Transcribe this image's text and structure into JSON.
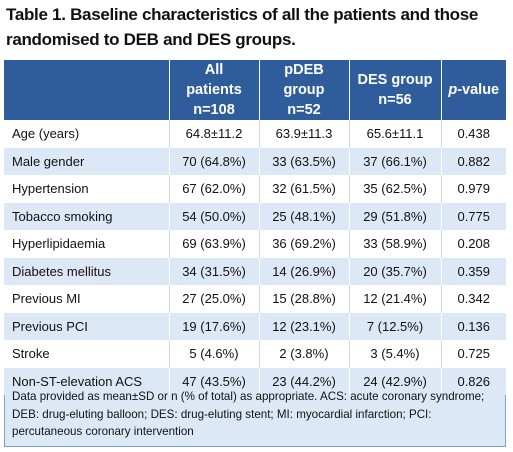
{
  "title": "Table 1. Baseline characteristics of all the patients and those randomised to DEB and DES groups.",
  "headers": {
    "characteristic": "",
    "all_patients": "All patients",
    "all_patients_n": "n=108",
    "pdeb": "pDEB group",
    "pdeb_n": "n=52",
    "des": "DES group",
    "des_n": "n=56",
    "p_prefix": "p",
    "p_suffix": "-value"
  },
  "rows": [
    {
      "label": "Age (years)",
      "all": "64.8±11.2",
      "pdeb": "63.9±11.3",
      "des": "65.6±11.1",
      "p": "0.438"
    },
    {
      "label": "Male gender",
      "all": "70 (64.8%)",
      "pdeb": "33 (63.5%)",
      "des": "37 (66.1%)",
      "p": "0.882"
    },
    {
      "label": "Hypertension",
      "all": "67 (62.0%)",
      "pdeb": "32 (61.5%)",
      "des": "35 (62.5%)",
      "p": "0.979"
    },
    {
      "label": "Tobacco smoking",
      "all": "54 (50.0%)",
      "pdeb": "25 (48.1%)",
      "des": "29 (51.8%)",
      "p": "0.775"
    },
    {
      "label": "Hyperlipidaemia",
      "all": "69 (63.9%)",
      "pdeb": "36 (69.2%)",
      "des": "33 (58.9%)",
      "p": "0.208"
    },
    {
      "label": "Diabetes mellitus",
      "all": "34 (31.5%)",
      "pdeb": "14 (26.9%)",
      "des": "20 (35.7%)",
      "p": "0.359"
    },
    {
      "label": "Previous MI",
      "all": "27 (25.0%)",
      "pdeb": "15 (28.8%)",
      "des": "12 (21.4%)",
      "p": "0.342"
    },
    {
      "label": "Previous PCI",
      "all": "19 (17.6%)",
      "pdeb": "12 (23.1%)",
      "des": "7 (12.5%)",
      "p": "0.136"
    },
    {
      "label": "Stroke",
      "all": "5 (4.6%)",
      "pdeb": "2 (3.8%)",
      "des": "3 (5.4%)",
      "p": "0.725"
    },
    {
      "label": "Non-ST-elevation ACS",
      "all": "47 (43.5%)",
      "pdeb": "23 (44.2%)",
      "des": "24 (42.9%)",
      "p": "0.826"
    }
  ],
  "footnote": "Data provided as mean±SD or n (% of total) as appropriate. ACS: acute coronary syndrome; DEB: drug-eluting balloon; DES: drug-eluting stent; MI: myocardial infarction; PCI: percutaneous coronary intervention"
}
